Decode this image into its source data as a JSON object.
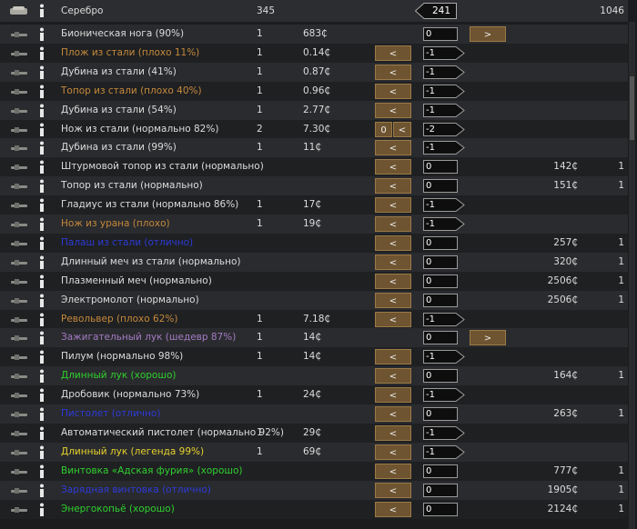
{
  "header": {
    "name": "Серебро",
    "count": 345,
    "qty": 241,
    "trader_count": 1046
  },
  "quality_colors": {
    "normal": "#dcdcdc",
    "poor": "#c4893c",
    "excellent": "#2d3bd8",
    "masterwork": "#a47cc4",
    "good": "#2fd02f",
    "legendary": "#e8d12e"
  },
  "rows": [
    {
      "name": "Бионическая нога (90%)",
      "q": "normal",
      "count": 1,
      "price": "683₵",
      "qty": 0,
      "rbtn": ">"
    },
    {
      "name": "Плож из стали (плохо 11%)",
      "q": "poor",
      "count": 1,
      "price": "0.14₵",
      "lbtn": "<",
      "qty": -1
    },
    {
      "name": "Дубина из стали (41%)",
      "q": "normal",
      "count": 1,
      "price": "0.87₵",
      "lbtn": "<",
      "qty": -1
    },
    {
      "name": "Топор из стали (плохо 40%)",
      "q": "poor",
      "count": 1,
      "price": "0.96₵",
      "lbtn": "<",
      "qty": -1
    },
    {
      "name": "Дубина из стали (54%)",
      "q": "normal",
      "count": 1,
      "price": "2.77₵",
      "lbtn": "<",
      "qty": -1
    },
    {
      "name": "Нож из стали (нормально 82%)",
      "q": "normal",
      "count": 2,
      "price": "7.30₵",
      "zbtn": "0",
      "lbtn": "<",
      "qty": -2
    },
    {
      "name": "Дубина из стали (99%)",
      "q": "normal",
      "count": 1,
      "price": "11₵",
      "lbtn": "<",
      "qty": -1
    },
    {
      "name": "Штурмовой топор из стали (нормально)",
      "q": "normal",
      "lbtn": "<",
      "qty": 0,
      "tprice": "142₵",
      "tcount": 1
    },
    {
      "name": "Топор из стали (нормально)",
      "q": "normal",
      "lbtn": "<",
      "qty": 0,
      "tprice": "151₵",
      "tcount": 1
    },
    {
      "name": "Гладиус из стали (нормально 86%)",
      "q": "normal",
      "count": 1,
      "price": "17₵",
      "lbtn": "<",
      "qty": -1
    },
    {
      "name": "Нож из урана (плохо)",
      "q": "poor",
      "count": 1,
      "price": "19₵",
      "lbtn": "<",
      "qty": -1
    },
    {
      "name": "Палаш из стали (отлично)",
      "q": "excellent",
      "lbtn": "<",
      "qty": 0,
      "tprice": "257₵",
      "tcount": 1
    },
    {
      "name": "Длинный меч из стали (нормально)",
      "q": "normal",
      "lbtn": "<",
      "qty": 0,
      "tprice": "320₵",
      "tcount": 1
    },
    {
      "name": "Плазменный меч (нормально)",
      "q": "normal",
      "lbtn": "<",
      "qty": 0,
      "tprice": "2506₵",
      "tcount": 1
    },
    {
      "name": "Электромолот (нормально)",
      "q": "normal",
      "lbtn": "<",
      "qty": 0,
      "tprice": "2506₵",
      "tcount": 1
    },
    {
      "name": "Револьвер (плохо 62%)",
      "q": "poor",
      "count": 1,
      "price": "7.18₵",
      "lbtn": "<",
      "qty": -1
    },
    {
      "name": "Зажигательный лук (шедевр 87%)",
      "q": "masterwork",
      "count": 1,
      "price": "14₵",
      "qty": 0,
      "rbtn": ">"
    },
    {
      "name": "Пилум (нормально 98%)",
      "q": "normal",
      "count": 1,
      "price": "14₵",
      "lbtn": "<",
      "qty": -1
    },
    {
      "name": "Длинный лук (хорошо)",
      "q": "good",
      "lbtn": "<",
      "qty": 0,
      "tprice": "164₵",
      "tcount": 1
    },
    {
      "name": "Дробовик (нормально 73%)",
      "q": "normal",
      "count": 1,
      "price": "24₵",
      "lbtn": "<",
      "qty": -1
    },
    {
      "name": "Пистолет (отлично)",
      "q": "excellent",
      "lbtn": "<",
      "qty": 0,
      "tprice": "263₵",
      "tcount": 1
    },
    {
      "name": "Автоматический пистолет (нормально 92%)",
      "q": "normal",
      "count": 1,
      "price": "29₵",
      "lbtn": "<",
      "qty": -1
    },
    {
      "name": "Длинный лук (легенда 99%)",
      "q": "legendary",
      "count": 1,
      "price": "69₵",
      "lbtn": "<",
      "qty": -1
    },
    {
      "name": "Винтовка «Адская фурия» (хорошо)",
      "q": "good",
      "lbtn": "<",
      "qty": 0,
      "tprice": "777₵",
      "tcount": 1
    },
    {
      "name": "Зарядная винтовка (отлично)",
      "q": "excellent",
      "lbtn": "<",
      "qty": 0,
      "tprice": "1905₵",
      "tcount": 1
    },
    {
      "name": "Энергокопьё (хорошо)",
      "q": "good",
      "lbtn": "<",
      "qty": 0,
      "tprice": "2124₵",
      "tcount": 1
    }
  ]
}
